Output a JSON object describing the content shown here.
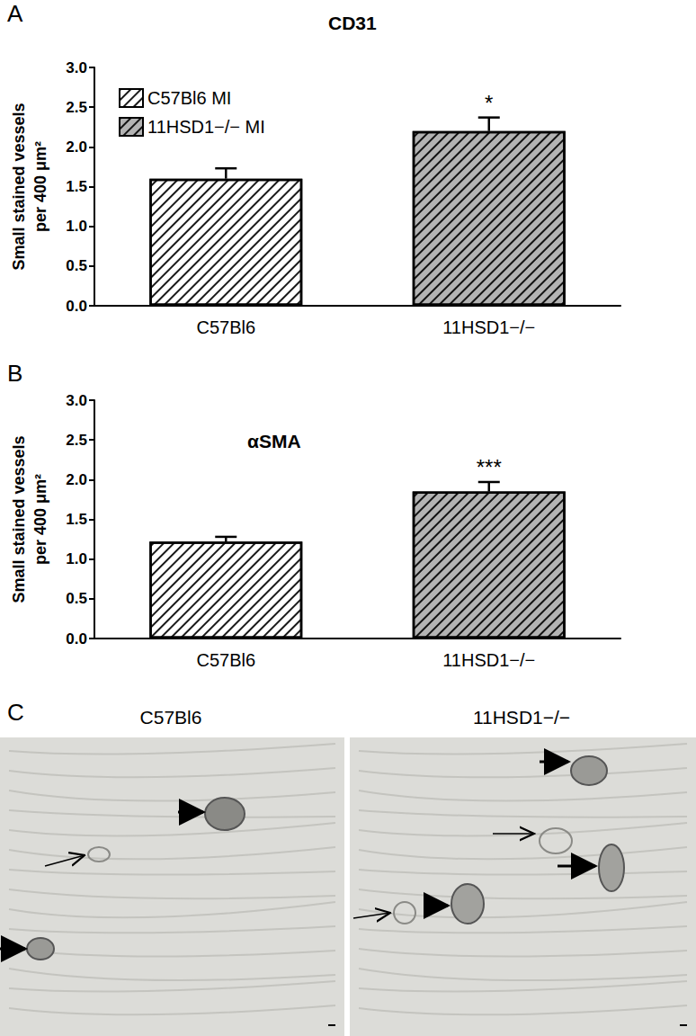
{
  "chart_data": [
    {
      "type": "bar",
      "label": "A",
      "title": "CD31",
      "y_label": "Small stained vessels\nper 400 μm²",
      "categories": [
        "C57Bl6",
        "11HSD1−/−"
      ],
      "series": [
        {
          "name": "C57Bl6 MI",
          "color": "#ffffff",
          "values": [
            1.6,
            null
          ],
          "errors": [
            0.13,
            null
          ],
          "significance": [
            null,
            null
          ]
        },
        {
          "name": "11HSD1−/− MI",
          "color": "#b3b3b3",
          "values": [
            null,
            2.2
          ],
          "errors": [
            null,
            0.17
          ],
          "significance": [
            null,
            "*"
          ]
        }
      ],
      "ylim": [
        0,
        3
      ],
      "yticks": [
        {
          "value": 0,
          "label": "0.0"
        },
        {
          "value": 0.5,
          "label": "0.5"
        },
        {
          "value": 1,
          "label": "1.0"
        },
        {
          "value": 1.5,
          "label": "1.5"
        },
        {
          "value": 2,
          "label": "2.0"
        },
        {
          "value": 2.5,
          "label": "2.5"
        },
        {
          "value": 3,
          "label": "3.0"
        }
      ],
      "legend": "upper left",
      "grid": false
    },
    {
      "type": "bar",
      "label": "B",
      "title": "αSMA",
      "y_label": "Small stained vessels\nper 400 μm²",
      "categories": [
        "C57Bl6",
        "11HSD1−/−"
      ],
      "values": [
        1.22,
        1.85
      ],
      "errors": [
        0.06,
        0.12
      ],
      "significance": [
        null,
        "***"
      ],
      "colors": [
        "#ffffff",
        "#b3b3b3"
      ],
      "ylim": [
        0,
        3
      ],
      "yticks": [
        {
          "value": 0,
          "label": "0.0"
        },
        {
          "value": 0.5,
          "label": "0.5"
        },
        {
          "value": 1,
          "label": "1.0"
        },
        {
          "value": 1.5,
          "label": "1.5"
        },
        {
          "value": 2,
          "label": "2.0"
        },
        {
          "value": 2.5,
          "label": "2.5"
        },
        {
          "value": 3,
          "label": "3.0"
        }
      ],
      "grid": false
    }
  ],
  "image_panel": {
    "label": "C",
    "titles": [
      "C57Bl6",
      "11HSD1−/−"
    ]
  }
}
